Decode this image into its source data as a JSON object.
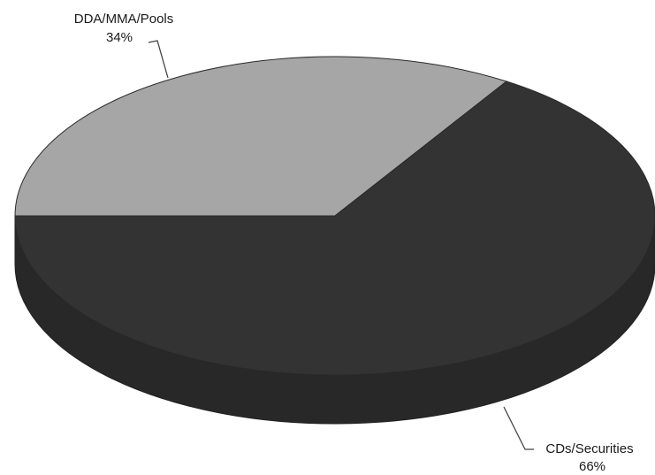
{
  "chart_data": {
    "type": "pie",
    "style": "3d",
    "title": "",
    "slices": [
      {
        "label": "DDA/MMA/Pools",
        "value": 34,
        "pct_label": "34%",
        "color": "#a6a6a6"
      },
      {
        "label": "CDs/Securities",
        "value": 66,
        "pct_label": "66%",
        "color": "#333333"
      }
    ],
    "legend": "none"
  }
}
